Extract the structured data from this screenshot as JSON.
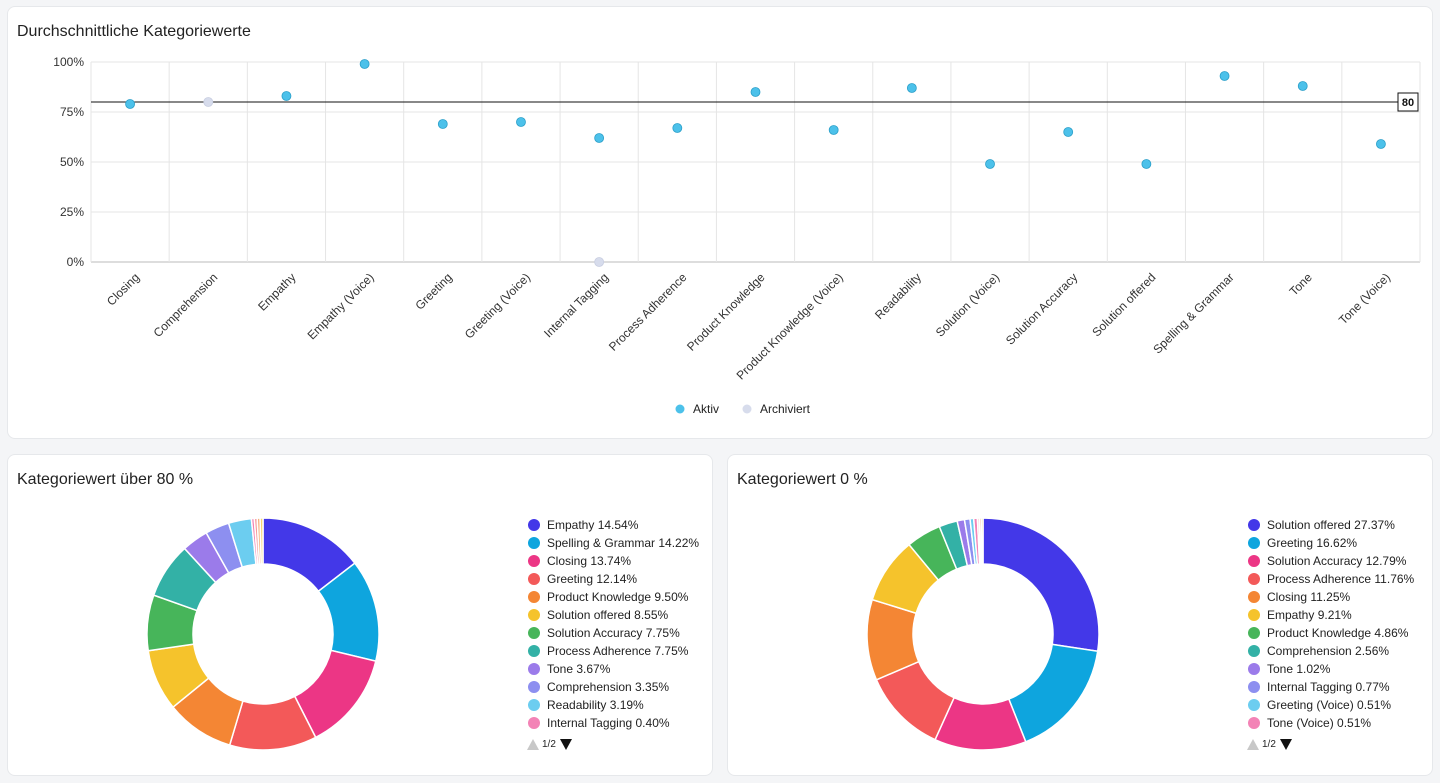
{
  "chart_data": [
    {
      "type": "scatter",
      "title": "Durchschnittliche Kategoriewerte",
      "categories": [
        "Closing",
        "Comprehension",
        "Empathy",
        "Empathy (Voice)",
        "Greeting",
        "Greeting (Voice)",
        "Internal Tagging",
        "Process Adherence",
        "Product Knowledge",
        "Product Knowledge (Voice)",
        "Readability",
        "Solution (Voice)",
        "Solution Accuracy",
        "Solution offered",
        "Spelling & Grammar",
        "Tone",
        "Tone (Voice)"
      ],
      "series": [
        {
          "name": "Aktiv",
          "color": "#4cc1ea",
          "values": [
            79,
            null,
            83,
            99,
            69,
            70,
            62,
            67,
            85,
            66,
            87,
            49,
            65,
            49,
            93,
            88,
            59
          ]
        },
        {
          "name": "Archiviert",
          "color": "#d7dcec",
          "values": [
            null,
            80,
            null,
            null,
            null,
            null,
            0,
            null,
            null,
            null,
            null,
            null,
            null,
            null,
            null,
            null,
            null
          ]
        }
      ],
      "yticks": [
        "100%",
        "75%",
        "50%",
        "25%",
        "0%"
      ],
      "ylim": [
        0,
        100
      ],
      "reference_line": {
        "value": 80,
        "label": "80"
      },
      "grid": true,
      "legend_position": "bottom"
    },
    {
      "type": "pie",
      "title": "Kategoriewert über 80 %",
      "slices": [
        {
          "label": "Empathy 14.54%",
          "value": 14.54,
          "color": "#4338e8"
        },
        {
          "label": "Spelling & Grammar 14.22%",
          "value": 14.22,
          "color": "#0ea5de"
        },
        {
          "label": "Closing 13.74%",
          "value": 13.74,
          "color": "#ec3685"
        },
        {
          "label": "Greeting 12.14%",
          "value": 12.14,
          "color": "#f35959"
        },
        {
          "label": "Product Knowledge 9.50%",
          "value": 9.5,
          "color": "#f48634"
        },
        {
          "label": "Solution offered 8.55%",
          "value": 8.55,
          "color": "#f5c32c"
        },
        {
          "label": "Solution Accuracy 7.75%",
          "value": 7.75,
          "color": "#47b55a"
        },
        {
          "label": "Process Adherence 7.75%",
          "value": 7.75,
          "color": "#33b1a6"
        },
        {
          "label": "Tone 3.67%",
          "value": 3.67,
          "color": "#9b7bea"
        },
        {
          "label": "Comprehension 3.35%",
          "value": 3.35,
          "color": "#8d8ff0"
        },
        {
          "label": "Readability 3.19%",
          "value": 3.19,
          "color": "#6ccdf0"
        },
        {
          "label": "Internal Tagging 0.40%",
          "value": 0.4,
          "color": "#f383b6"
        },
        {
          "label": "",
          "value": 0.4,
          "color": "#f79a9a"
        },
        {
          "label": "",
          "value": 0.4,
          "color": "#f5b07b"
        },
        {
          "label": "",
          "value": 0.4,
          "color": "#f7d36e"
        }
      ],
      "legend_position": "right",
      "pager": "1/2"
    },
    {
      "type": "pie",
      "title": "Kategoriewert 0 %",
      "slices": [
        {
          "label": "Solution offered 27.37%",
          "value": 27.37,
          "color": "#4338e8"
        },
        {
          "label": "Greeting 16.62%",
          "value": 16.62,
          "color": "#0ea5de"
        },
        {
          "label": "Solution Accuracy 12.79%",
          "value": 12.79,
          "color": "#ec3685"
        },
        {
          "label": "Process Adherence 11.76%",
          "value": 11.76,
          "color": "#f35959"
        },
        {
          "label": "Closing 11.25%",
          "value": 11.25,
          "color": "#f48634"
        },
        {
          "label": "Empathy 9.21%",
          "value": 9.21,
          "color": "#f5c32c"
        },
        {
          "label": "Product Knowledge 4.86%",
          "value": 4.86,
          "color": "#47b55a"
        },
        {
          "label": "Comprehension 2.56%",
          "value": 2.56,
          "color": "#33b1a6"
        },
        {
          "label": "Tone 1.02%",
          "value": 1.02,
          "color": "#9b7bea"
        },
        {
          "label": "Internal Tagging 0.77%",
          "value": 0.77,
          "color": "#8d8ff0"
        },
        {
          "label": "Greeting (Voice) 0.51%",
          "value": 0.51,
          "color": "#6ccdf0"
        },
        {
          "label": "Tone (Voice) 0.51%",
          "value": 0.51,
          "color": "#f383b6"
        },
        {
          "label": "",
          "value": 0.26,
          "color": "#f79a9a"
        },
        {
          "label": "",
          "value": 0.26,
          "color": "#f5b07b"
        },
        {
          "label": "",
          "value": 0.25,
          "color": "#f7d36e"
        }
      ],
      "legend_position": "right",
      "pager": "1/2"
    }
  ]
}
